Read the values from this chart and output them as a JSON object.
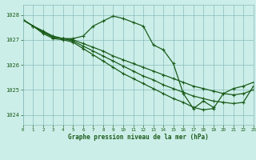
{
  "title": "Graphe pression niveau de la mer (hPa)",
  "background_color": "#cceee8",
  "grid_color": "#88bbbb",
  "line_color": "#1a5c1a",
  "xlim": [
    0,
    23
  ],
  "ylim": [
    1023.6,
    1028.4
  ],
  "yticks": [
    1024,
    1025,
    1026,
    1027,
    1028
  ],
  "xticks": [
    0,
    1,
    2,
    3,
    4,
    5,
    6,
    7,
    8,
    9,
    10,
    11,
    12,
    13,
    14,
    15,
    16,
    17,
    18,
    19,
    20,
    21,
    22,
    23
  ],
  "series": [
    [
      1027.8,
      1027.55,
      1027.35,
      1027.15,
      1027.05,
      1027.05,
      1027.15,
      1027.55,
      1027.75,
      1027.95,
      1027.85,
      1027.7,
      1027.55,
      1026.8,
      1026.6,
      1026.05,
      1024.85,
      1024.25,
      1024.55,
      1024.3,
      null,
      null,
      null,
      null
    ],
    [
      1027.8,
      1027.55,
      1027.35,
      1027.1,
      1027.05,
      1027.0,
      1026.85,
      1026.7,
      1026.55,
      1026.35,
      1026.2,
      1026.05,
      1025.9,
      1025.75,
      1025.6,
      1025.45,
      1025.3,
      1025.15,
      1025.05,
      1024.95,
      1024.85,
      1024.8,
      1024.85,
      1025.0
    ],
    [
      1027.8,
      1027.55,
      1027.3,
      1027.1,
      1027.05,
      1026.95,
      1026.75,
      1026.55,
      1026.35,
      1026.15,
      1025.95,
      1025.75,
      1025.55,
      1025.4,
      1025.2,
      1025.05,
      1024.9,
      1024.75,
      1024.65,
      1024.55,
      1024.5,
      1024.45,
      1024.5,
      1025.15
    ],
    [
      1027.8,
      1027.55,
      1027.25,
      1027.05,
      1027.0,
      1026.9,
      1026.65,
      1026.4,
      1026.15,
      1025.9,
      1025.65,
      1025.45,
      1025.25,
      1025.05,
      1024.85,
      1024.65,
      1024.5,
      1024.3,
      1024.2,
      1024.25,
      1024.85,
      1025.05,
      1025.15,
      1025.3
    ]
  ]
}
